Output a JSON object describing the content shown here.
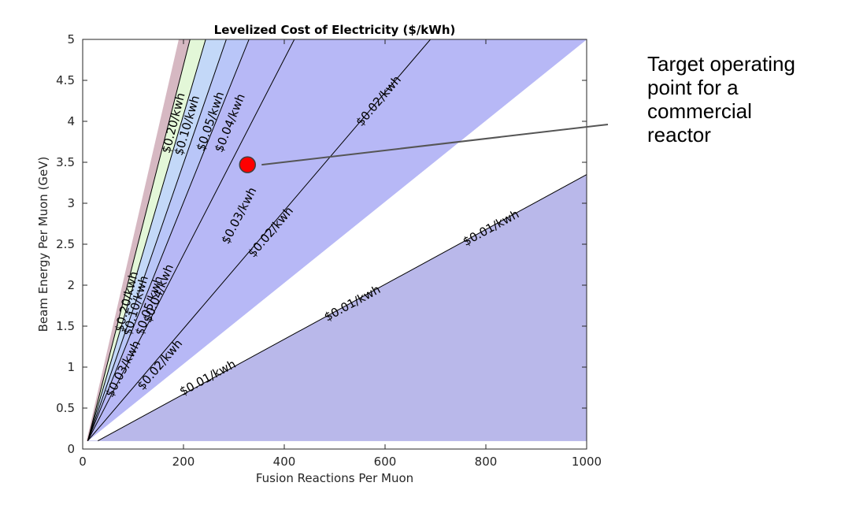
{
  "chart_data": {
    "type": "area",
    "title": "Levelized Cost of Electricity ($/kWh)",
    "xlabel": "Fusion Reactions Per Muon",
    "ylabel": "Beam Energy Per Muon (GeV)",
    "xlim": [
      0,
      1000
    ],
    "ylim": [
      0,
      5
    ],
    "xticks": [
      "0",
      "200",
      "400",
      "600",
      "800",
      "1000"
    ],
    "yticks": [
      "0",
      "0.5",
      "1",
      "1.5",
      "2",
      "2.5",
      "3",
      "3.5",
      "4",
      "4.5",
      "5"
    ],
    "grid": false,
    "contour_lines": [
      {
        "label": "$0.20/kwh",
        "points": [
          [
            10,
            0.1
          ],
          [
            213,
            5
          ]
        ],
        "label_at": [
          [
            180,
            3.98
          ],
          [
            87,
            1.8
          ]
        ]
      },
      {
        "label": "$0.10/kwh",
        "points": [
          [
            10,
            0.1
          ],
          [
            244,
            5
          ]
        ],
        "label_at": [
          [
            207,
            3.95
          ],
          [
            105,
            1.75
          ]
        ]
      },
      {
        "label": "$0.05/kwh",
        "points": [
          [
            10,
            0.1
          ],
          [
            285,
            5
          ]
        ],
        "label_at": [
          [
            253,
            4.0
          ],
          [
            132,
            1.75
          ]
        ]
      },
      {
        "label": "$0.04/kwh",
        "points": [
          [
            10,
            0.1
          ],
          [
            330,
            5
          ]
        ],
        "label_at": [
          [
            292,
            3.98
          ],
          [
            150,
            1.9
          ]
        ]
      },
      {
        "label": "$0.03/kwh",
        "points": [
          [
            10,
            0.1
          ],
          [
            420,
            5
          ]
        ],
        "label_at": [
          [
            310,
            2.85
          ],
          [
            80,
            0.98
          ]
        ]
      },
      {
        "label": "$0.02/kwh",
        "points": [
          [
            10,
            0.1
          ],
          [
            690,
            5
          ]
        ],
        "label_at": [
          [
            587,
            4.25
          ],
          [
            373,
            2.65
          ],
          [
            153,
            1.03
          ]
        ]
      },
      {
        "label": "$0.01/kwh",
        "points": [
          [
            30,
            0.1
          ],
          [
            1000,
            3.35
          ]
        ],
        "label_at": [
          [
            810,
            2.7
          ],
          [
            535,
            1.78
          ],
          [
            248,
            0.87
          ]
        ]
      }
    ],
    "regions": [
      {
        "color": "#d6b8c2"
      },
      {
        "color": "#e3f7d8"
      },
      {
        "color": "#c3d8f8"
      },
      {
        "color": "#b9c6f8"
      },
      {
        "color": "#b7b8f6"
      },
      {
        "color": "#b9b8ea"
      }
    ],
    "marker": {
      "x": 327,
      "y": 3.47,
      "color": "#ff0000"
    },
    "annotation": {
      "text": "Target operating\npoint for a\ncommercial\nreactor"
    }
  }
}
